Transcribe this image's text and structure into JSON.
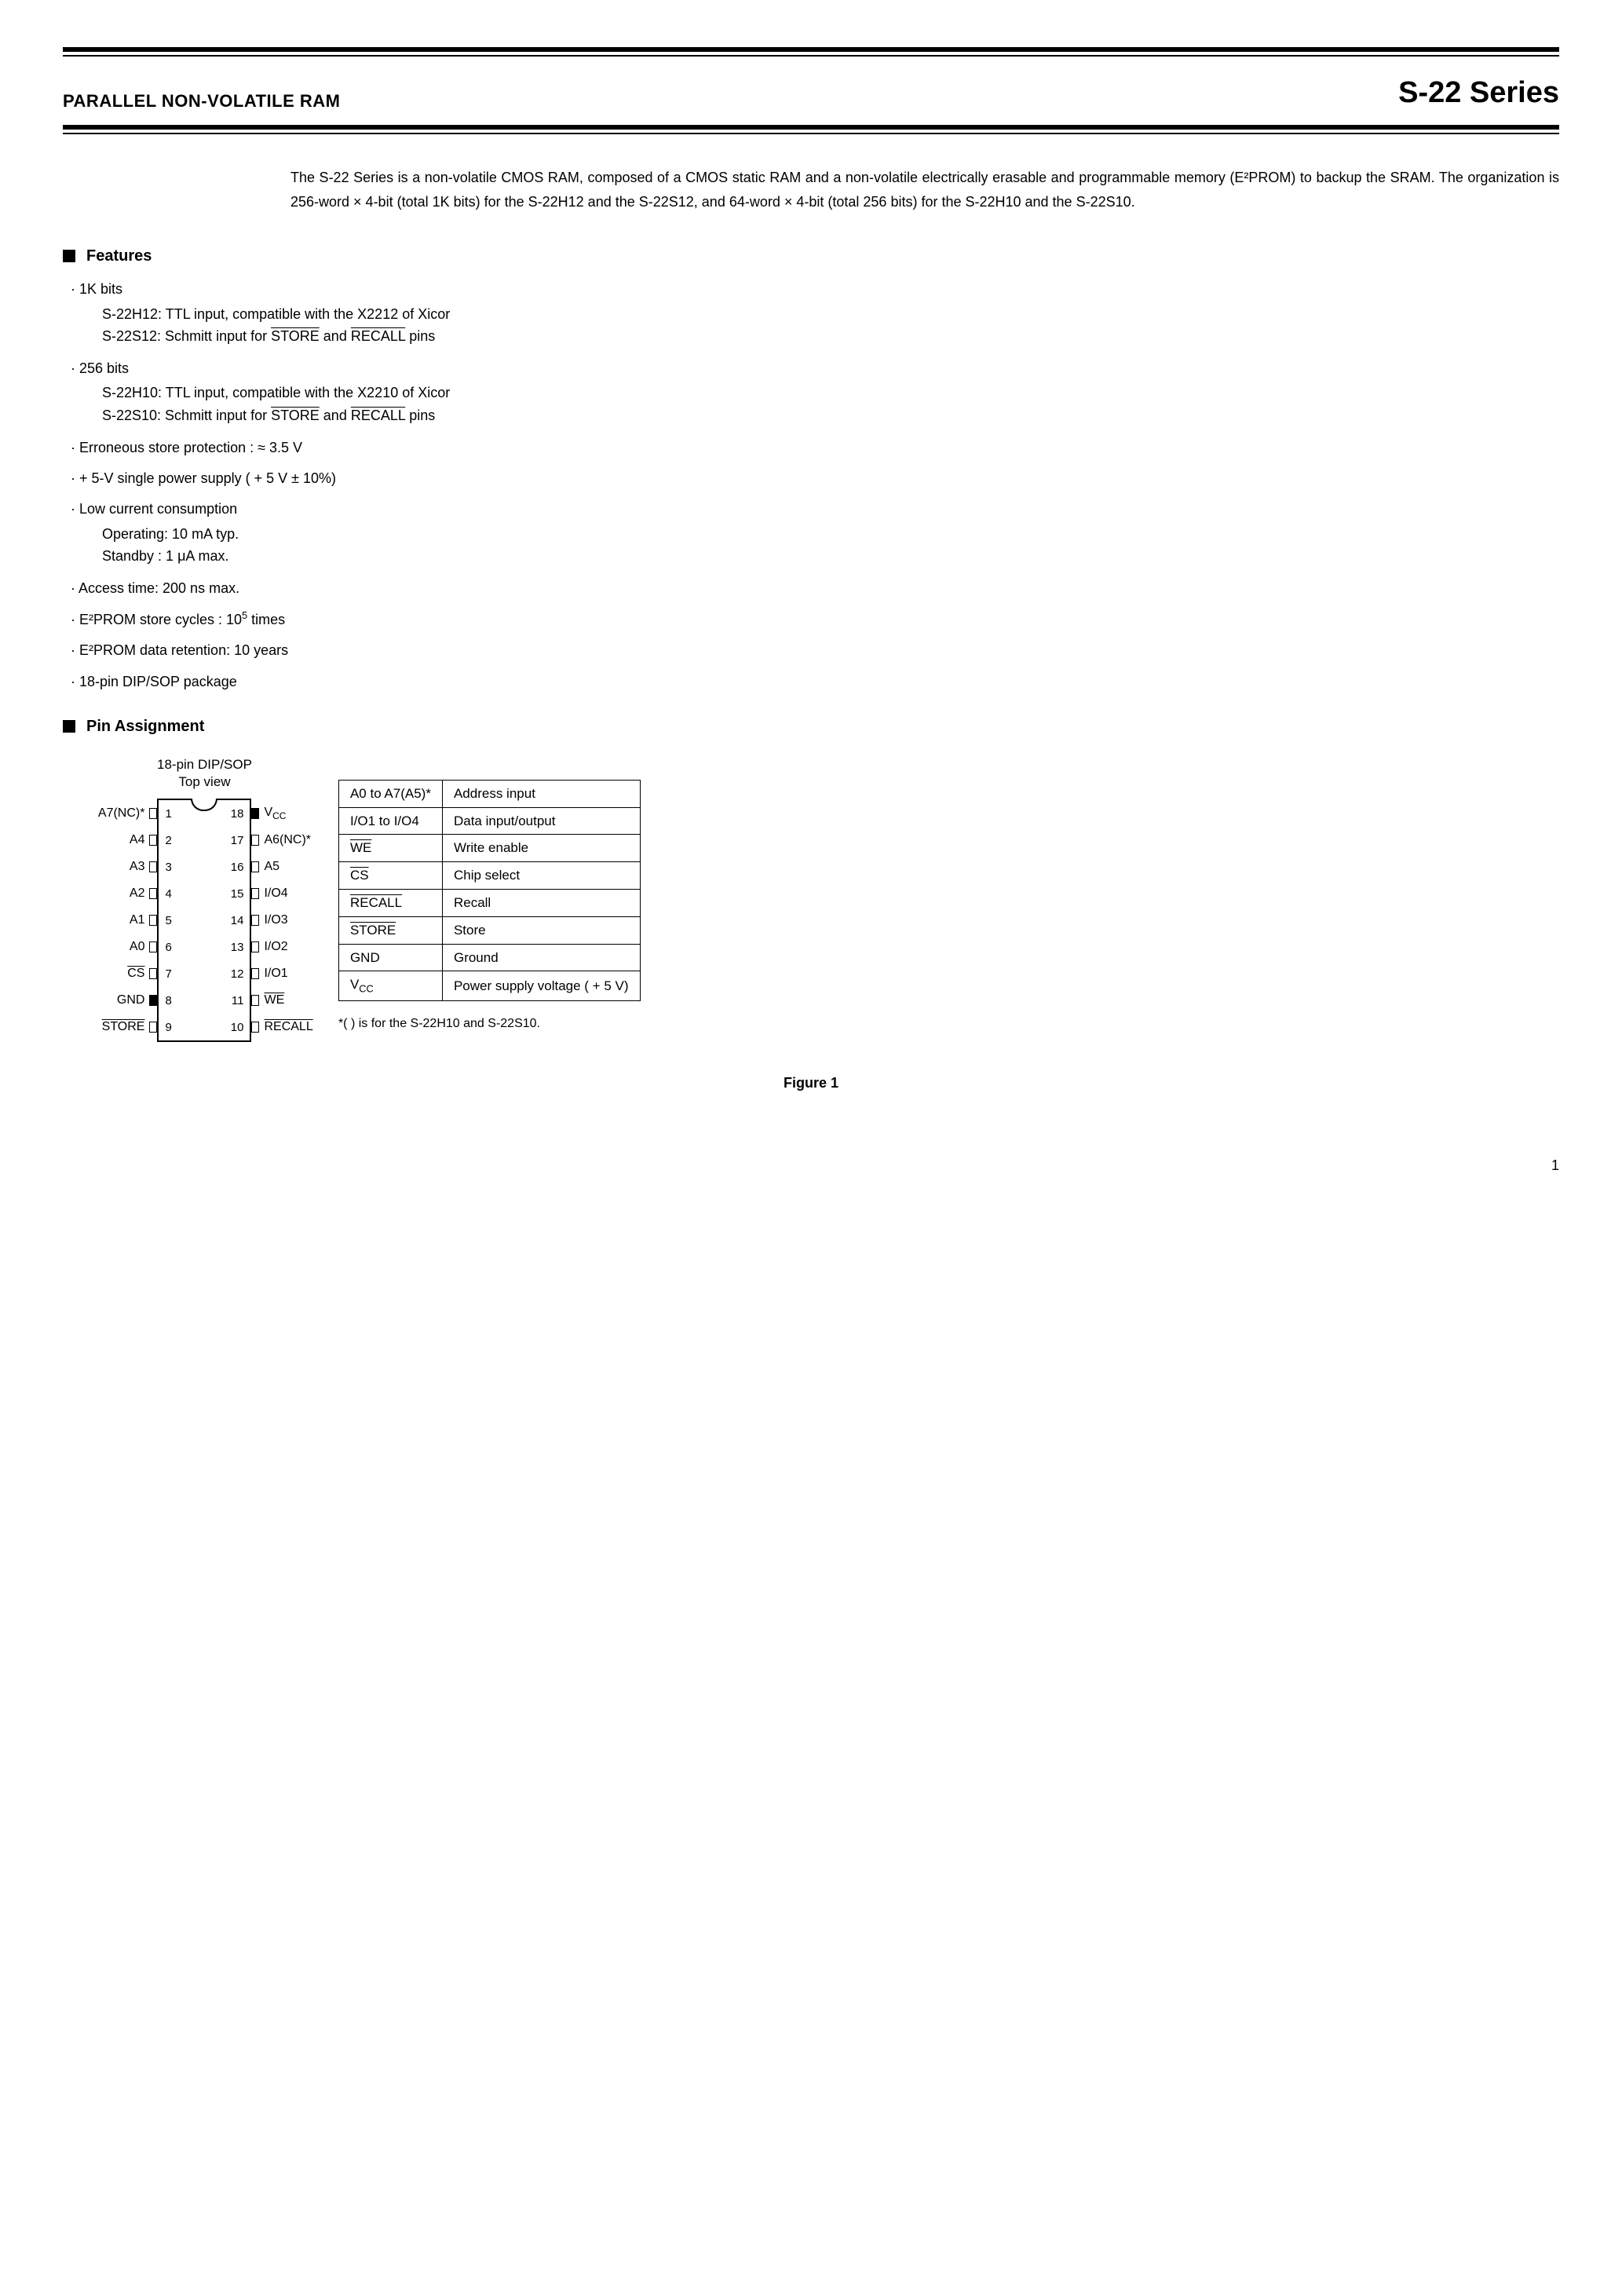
{
  "header": {
    "left": "PARALLEL NON-VOLATILE RAM",
    "right": "S-22 Series"
  },
  "intro": "The S-22 Series is a non-volatile CMOS RAM, composed of a CMOS static RAM and a non-volatile electrically erasable and programmable memory (E²PROM) to backup the SRAM.  The organization is 256-word × 4-bit (total 1K bits) for the S-22H12 and the S-22S12, and 64-word × 4-bit (total 256 bits) for the S-22H10 and the S-22S10.",
  "sections": {
    "features": "Features",
    "pin_assignment": "Pin Assignment"
  },
  "features": [
    {
      "text": "· 1K bits",
      "subs": [
        "S-22H12: TTL input, compatible with the X2212 of Xicor",
        "S-22S12: Schmitt input for <span class=\"overline\">STORE</span> and <span class=\"overline\">RECALL</span> pins"
      ]
    },
    {
      "text": "· 256 bits",
      "subs": [
        "S-22H10: TTL input, compatible with the X2210 of Xicor",
        "S-22S10: Schmitt input for <span class=\"overline\">STORE</span> and <span class=\"overline\">RECALL</span> pins"
      ]
    },
    {
      "text": "· Erroneous store protection : ≈ 3.5 V",
      "subs": []
    },
    {
      "text": "· + 5-V single power supply ( + 5 V ± 10%)",
      "subs": []
    },
    {
      "text": "· Low current consumption",
      "subs": [
        "Operating:  10 mA typ.",
        "Standby   :   1 μA  max."
      ]
    },
    {
      "text": "· Access time: 200 ns max.",
      "subs": []
    },
    {
      "text": "· E²PROM store cycles : 10<sup>5</sup> times",
      "subs": []
    },
    {
      "text": "· E²PROM data retention: 10 years",
      "subs": []
    },
    {
      "text": "· 18-pin DIP/SOP package",
      "subs": []
    }
  ],
  "pin_diagram": {
    "title1": "18-pin DIP/SOP",
    "title2": "Top view",
    "rows": [
      {
        "l": "A7(NC)*",
        "ln": "1",
        "rn": "18",
        "r": "V<sub>CC</sub>",
        "lfill": false,
        "rfill": true
      },
      {
        "l": "A4",
        "ln": "2",
        "rn": "17",
        "r": "A6(NC)*",
        "lfill": false,
        "rfill": false
      },
      {
        "l": "A3",
        "ln": "3",
        "rn": "16",
        "r": "A5",
        "lfill": false,
        "rfill": false
      },
      {
        "l": "A2",
        "ln": "4",
        "rn": "15",
        "r": "I/O4",
        "lfill": false,
        "rfill": false
      },
      {
        "l": "A1",
        "ln": "5",
        "rn": "14",
        "r": "I/O3",
        "lfill": false,
        "rfill": false
      },
      {
        "l": "A0",
        "ln": "6",
        "rn": "13",
        "r": "I/O2",
        "lfill": false,
        "rfill": false
      },
      {
        "l": "<span class=\"overline\">CS</span>",
        "ln": "7",
        "rn": "12",
        "r": "I/O1",
        "lfill": false,
        "rfill": false
      },
      {
        "l": "GND",
        "ln": "8",
        "rn": "11",
        "r": "<span class=\"overline\">WE</span>",
        "lfill": true,
        "rfill": false
      },
      {
        "l": "<span class=\"overline\">STORE</span>",
        "ln": "9",
        "rn": "10",
        "r": "<span class=\"overline\">RECALL</span>",
        "lfill": false,
        "rfill": false
      }
    ]
  },
  "pin_table": [
    {
      "a": "A0 to A7(A5)*",
      "b": "Address input"
    },
    {
      "a": "I/O1 to I/O4",
      "b": "Data input/output"
    },
    {
      "a": "<span class=\"overline\">WE</span>",
      "b": "Write enable"
    },
    {
      "a": "<span class=\"overline\">CS</span>",
      "b": "Chip select"
    },
    {
      "a": "<span class=\"overline\">RECALL</span>",
      "b": "Recall"
    },
    {
      "a": "<span class=\"overline\">STORE</span>",
      "b": "Store"
    },
    {
      "a": "GND",
      "b": "Ground"
    },
    {
      "a": "V<sub>CC</sub>",
      "b": "Power supply voltage ( + 5 V)"
    }
  ],
  "footnote": "*(    ) is for the S-22H10 and S-22S10.",
  "figure_caption": "Figure 1",
  "page_number": "1"
}
